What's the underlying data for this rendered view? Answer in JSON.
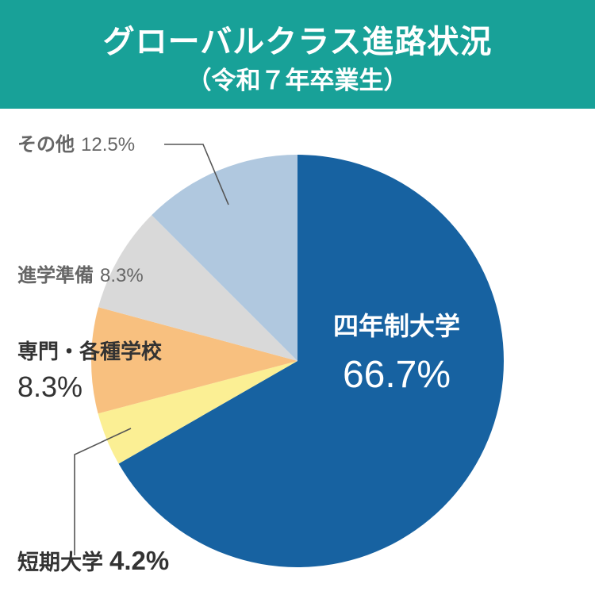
{
  "title": "グローバルクラス進路状況",
  "subtitle": "（令和７年卒業生）",
  "colors": {
    "banner": "#18a198"
  },
  "chart_data": {
    "type": "pie",
    "categories": [
      "四年制大学",
      "短期大学",
      "専門・各種学校",
      "進学準備",
      "その他"
    ],
    "values": [
      66.7,
      4.2,
      8.3,
      8.3,
      12.5
    ],
    "value_labels": [
      "66.7%",
      "4.2%",
      "8.3%",
      "8.3%",
      "12.5%"
    ],
    "colors": [
      "#1762a1",
      "#fbef94",
      "#f8c07f",
      "#d9d9d9",
      "#b0c8df"
    ],
    "start": "12 o'clock",
    "direction": "clockwise",
    "legend": "none"
  }
}
